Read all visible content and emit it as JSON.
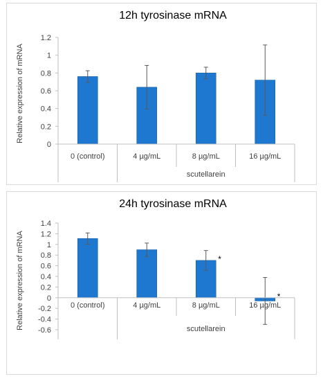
{
  "chart_data": [
    {
      "type": "bar",
      "title": "12h tyrosinase mRNA",
      "ylabel": "Relative expression of mRNA",
      "xlabel": "",
      "group_label": "scutellarein",
      "categories": [
        "0 (control)",
        "4 µg/mL",
        "8 µg/mL",
        "16 µg/mL"
      ],
      "values": [
        0.76,
        0.64,
        0.8,
        0.72
      ],
      "errors": [
        0.065,
        0.245,
        0.065,
        0.395
      ],
      "significance": [
        "",
        "",
        "",
        ""
      ],
      "ylim": [
        0,
        1.2
      ],
      "yticks": [
        "0",
        "0.2",
        "0.4",
        "0.6",
        "0.8",
        "1",
        "1.2"
      ],
      "grid": false,
      "bar_color": "#1f78cf"
    },
    {
      "type": "bar",
      "title": "24h tyrosinase mRNA",
      "ylabel": "Relative expression of mRNA",
      "xlabel": "",
      "group_label": "scutellarein",
      "categories": [
        "0 (control)",
        "4 µg/mL",
        "8 µg/mL",
        "16 µg/mL"
      ],
      "values": [
        1.11,
        0.9,
        0.7,
        -0.06
      ],
      "errors": [
        0.105,
        0.125,
        0.185,
        0.44
      ],
      "significance": [
        "",
        "",
        "*",
        "*"
      ],
      "ylim": [
        -0.6,
        1.4
      ],
      "yticks": [
        "-0.6",
        "-0.4",
        "-0.2",
        "0",
        "0.2",
        "0.4",
        "0.6",
        "0.8",
        "1",
        "1.2",
        "1.4"
      ],
      "grid": false,
      "bar_color": "#1f78cf"
    }
  ]
}
